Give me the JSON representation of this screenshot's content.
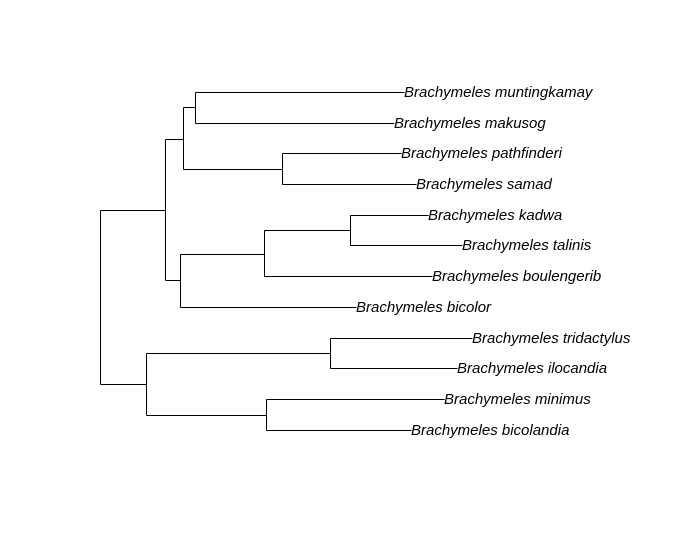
{
  "tree": {
    "taxa": [
      "Brachymeles muntingkamay",
      "Brachymeles makusog",
      "Brachymeles pathfinderi",
      "Brachymeles samad",
      "Brachymeles kadwa",
      "Brachymeles talinis",
      "Brachymeles boulengerib",
      "Brachymeles bicolor",
      "Brachymeles tridactylus",
      "Brachymeles ilocandia",
      "Brachymeles minimus",
      "Brachymeles bicolandia"
    ],
    "newick": "((((Brachymeles muntingkamay,Brachymeles makusog),(Brachymeles pathfinderi,Brachymeles samad)),(((Brachymeles kadwa,Brachymeles talinis),Brachymeles boulengerib),Brachymeles bicolor)),((Brachymeles tridactylus,Brachymeles ilocandia),(Brachymeles minimus,Brachymeles bicolandia)));"
  }
}
